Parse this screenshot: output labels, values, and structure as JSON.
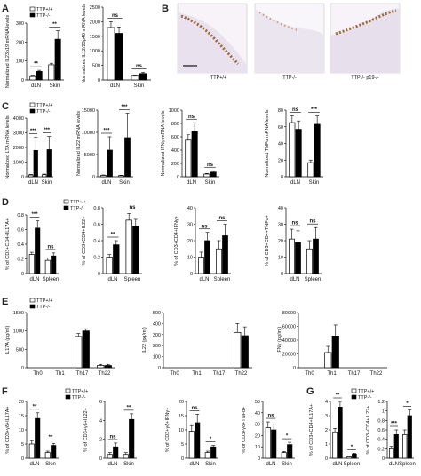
{
  "panel_labels": [
    "A",
    "B",
    "C",
    "D",
    "E",
    "F",
    "G"
  ],
  "legend": {
    "wt": "TTP+/+",
    "ko": "TTP-/-"
  },
  "micrographs": {
    "labels": [
      "TTP+/+",
      "TTP-/-",
      "TTP-/- p19-/-"
    ],
    "colors": {
      "tissue": "#e9e1ee",
      "stain": "#9b6a3e",
      "edge": "#c9b6cf"
    }
  },
  "colors": {
    "wt_fill": "#ffffff",
    "ko_fill": "#000000",
    "axis": "#000000"
  },
  "chart_data": [
    {
      "type": "bar",
      "panel": "A",
      "categories": [
        "dLN",
        "Skin"
      ],
      "series": [
        {
          "name": "TTP+/+",
          "values": [
            18,
            80
          ],
          "errors": [
            3,
            8
          ]
        },
        {
          "name": "TTP-/-",
          "values": [
            45,
            215
          ],
          "errors": [
            6,
            45
          ]
        }
      ],
      "ylabel": "Normalized IL23p19 mRNA levels",
      "ylim": [
        0,
        300
      ],
      "yticks": [
        0,
        100,
        200,
        300
      ],
      "significance": [
        "**",
        "**"
      ]
    },
    {
      "type": "bar",
      "panel": "A",
      "categories": [
        "dLN",
        "Skin"
      ],
      "series": [
        {
          "name": "TTP+/+",
          "values": [
            1800,
            130
          ],
          "errors": [
            200,
            25
          ]
        },
        {
          "name": "TTP-/-",
          "values": [
            1600,
            220
          ],
          "errors": [
            220,
            40
          ]
        }
      ],
      "ylabel": "Normalized IL12/23p40 mRNA levels",
      "ylim": [
        0,
        2500
      ],
      "yticks": [
        0,
        500,
        1000,
        1500,
        2000,
        2500
      ],
      "significance": [
        "ns",
        "ns"
      ]
    },
    {
      "type": "bar",
      "panel": "C",
      "categories": [
        "dLN",
        "Skin"
      ],
      "series": [
        {
          "name": "TTP+/+",
          "values": [
            120,
            140
          ],
          "errors": [
            40,
            40
          ]
        },
        {
          "name": "TTP-/-",
          "values": [
            1800,
            1850
          ],
          "errors": [
            900,
            900
          ]
        }
      ],
      "ylabel": "Normalized LTA mRNA levels",
      "ylim": [
        0,
        4000
      ],
      "yticks": [
        0,
        1000,
        2000,
        3000,
        4000
      ],
      "significance": [
        "***",
        "***"
      ]
    },
    {
      "type": "bar",
      "panel": "C",
      "categories": [
        "dLN",
        "Skin"
      ],
      "series": [
        {
          "name": "TTP+/+",
          "values": [
            300,
            250
          ],
          "errors": [
            100,
            80
          ]
        },
        {
          "name": "TTP-/-",
          "values": [
            6000,
            8800
          ],
          "errors": [
            3000,
            5500
          ]
        }
      ],
      "ylabel": "Normalized IL22 mRNA levels",
      "ylim": [
        0,
        15000
      ],
      "yticks": [
        0,
        5000,
        10000,
        15000
      ],
      "significance": [
        "***",
        "***"
      ]
    },
    {
      "type": "bar",
      "panel": "C",
      "categories": [
        "dLN",
        "Skin"
      ],
      "series": [
        {
          "name": "TTP+/+",
          "values": [
            550,
            40
          ],
          "errors": [
            80,
            10
          ]
        },
        {
          "name": "TTP-/-",
          "values": [
            680,
            70
          ],
          "errors": [
            130,
            20
          ]
        }
      ],
      "ylabel": "Normalized IFNγ mRNA levels",
      "ylim": [
        0,
        1000
      ],
      "yticks": [
        0,
        200,
        400,
        600,
        800,
        1000
      ],
      "significance": [
        "ns",
        "ns"
      ]
    },
    {
      "type": "bar",
      "panel": "C",
      "categories": [
        "dLN",
        "Skin"
      ],
      "series": [
        {
          "name": "TTP+/+",
          "values": [
            65,
            17
          ],
          "errors": [
            8,
            3
          ]
        },
        {
          "name": "TTP-/-",
          "values": [
            57,
            63
          ],
          "errors": [
            10,
            10
          ]
        }
      ],
      "ylabel": "Normalized TNFα mRNA levels",
      "ylim": [
        0,
        80
      ],
      "yticks": [
        0,
        20,
        40,
        60,
        80
      ],
      "significance": [
        "ns",
        "***"
      ]
    },
    {
      "type": "bar",
      "panel": "D",
      "categories": [
        "dLN",
        "Spleen"
      ],
      "series": [
        {
          "name": "TTP+/+",
          "values": [
            0.26,
            0.18
          ],
          "errors": [
            0.03,
            0.03
          ]
        },
        {
          "name": "TTP-/-",
          "values": [
            0.62,
            0.24
          ],
          "errors": [
            0.1,
            0.04
          ]
        }
      ],
      "ylabel": "% of CD3+CD4+IL17A+",
      "ylim": [
        0,
        0.8
      ],
      "yticks": [
        0,
        0.2,
        0.4,
        0.6,
        0.8
      ],
      "significance": [
        "***",
        "ns"
      ]
    },
    {
      "type": "bar",
      "panel": "D",
      "categories": [
        "dLN",
        "Spleen"
      ],
      "series": [
        {
          "name": "TTP+/+",
          "values": [
            0.2,
            0.65
          ],
          "errors": [
            0.03,
            0.08
          ]
        },
        {
          "name": "TTP-/-",
          "values": [
            0.35,
            0.58
          ],
          "errors": [
            0.05,
            0.08
          ]
        }
      ],
      "ylabel": "% of CD3+CD4+IL22+",
      "ylim": [
        0,
        0.8
      ],
      "yticks": [
        0,
        0.2,
        0.4,
        0.6,
        0.8
      ],
      "significance": [
        "**",
        "ns"
      ]
    },
    {
      "type": "bar",
      "panel": "D",
      "categories": [
        "dLN",
        "Spleen"
      ],
      "series": [
        {
          "name": "TTP+/+",
          "values": [
            10,
            15
          ],
          "errors": [
            3,
            5
          ]
        },
        {
          "name": "TTP-/-",
          "values": [
            20,
            23
          ],
          "errors": [
            5,
            7
          ]
        }
      ],
      "ylabel": "% of CD3+CD4+IFNγ+",
      "ylim": [
        0,
        40
      ],
      "yticks": [
        0,
        10,
        20,
        30,
        40
      ],
      "significance": [
        "ns",
        "ns"
      ]
    },
    {
      "type": "bar",
      "panel": "D",
      "categories": [
        "dLN",
        "Spleen"
      ],
      "series": [
        {
          "name": "TTP+/+",
          "values": [
            21,
            15
          ],
          "errors": [
            6,
            5
          ]
        },
        {
          "name": "TTP-/-",
          "values": [
            19,
            21
          ],
          "errors": [
            7,
            7
          ]
        }
      ],
      "ylabel": "% of CD3+CD4+TNFα+",
      "ylim": [
        0,
        40
      ],
      "yticks": [
        0,
        10,
        20,
        30,
        40
      ],
      "significance": [
        "ns",
        "ns"
      ]
    },
    {
      "type": "bar",
      "panel": "E",
      "categories": [
        "Th0",
        "Th1",
        "Th17",
        "Th22"
      ],
      "series": [
        {
          "name": "TTP+/+",
          "values": [
            0,
            0,
            850,
            60
          ],
          "errors": [
            0,
            0,
            80,
            30
          ]
        },
        {
          "name": "TTP-/-",
          "values": [
            0,
            0,
            1000,
            60
          ],
          "errors": [
            0,
            0,
            60,
            30
          ]
        }
      ],
      "ylabel": "IL17A (pg/ml)",
      "ylim": [
        0,
        1500
      ],
      "yticks": [
        0,
        500,
        1000,
        1500
      ],
      "significance": []
    },
    {
      "type": "bar",
      "panel": "E",
      "categories": [
        "Th0",
        "Th1",
        "Th17",
        "Th22"
      ],
      "series": [
        {
          "name": "TTP+/+",
          "values": [
            0,
            0,
            0,
            320
          ],
          "errors": [
            0,
            0,
            0,
            80
          ]
        },
        {
          "name": "TTP-/-",
          "values": [
            0,
            0,
            0,
            290
          ],
          "errors": [
            0,
            0,
            0,
            80
          ]
        }
      ],
      "ylabel": "IL22 (pg/ml)",
      "ylim": [
        0,
        500
      ],
      "yticks": [
        0,
        100,
        200,
        300,
        400,
        500
      ],
      "significance": []
    },
    {
      "type": "bar",
      "panel": "E",
      "categories": [
        "Th0",
        "Th1",
        "Th17",
        "Th22"
      ],
      "series": [
        {
          "name": "TTP+/+",
          "values": [
            0,
            22000,
            0,
            0
          ],
          "errors": [
            0,
            9000,
            0,
            0
          ]
        },
        {
          "name": "TTP-/-",
          "values": [
            0,
            46000,
            0,
            0
          ],
          "errors": [
            0,
            16000,
            0,
            0
          ]
        }
      ],
      "ylabel": "IFNγ (pg/ml)",
      "ylim": [
        0,
        80000
      ],
      "yticks": [
        0,
        20000,
        40000,
        60000,
        80000
      ],
      "significance": []
    },
    {
      "type": "bar",
      "panel": "F",
      "categories": [
        "dLN",
        "Skin"
      ],
      "series": [
        {
          "name": "TTP+/+",
          "values": [
            5,
            2
          ],
          "errors": [
            1.2,
            0.5
          ]
        },
        {
          "name": "TTP-/-",
          "values": [
            14,
            4.5
          ],
          "errors": [
            2,
            0.7
          ]
        }
      ],
      "ylabel": "% of CD3+γδ+IL17A+",
      "ylim": [
        0,
        20
      ],
      "yticks": [
        0,
        5,
        10,
        15,
        20
      ],
      "significance": [
        "**",
        "**"
      ]
    },
    {
      "type": "bar",
      "panel": "F",
      "categories": [
        "dLN",
        "Skin"
      ],
      "series": [
        {
          "name": "TTP+/+",
          "values": [
            0.4,
            0.4
          ],
          "errors": [
            0.2,
            0.2
          ]
        },
        {
          "name": "TTP-/-",
          "values": [
            1.2,
            4.1
          ],
          "errors": [
            0.4,
            0.6
          ]
        }
      ],
      "ylabel": "% of CD3+γδ+IL22+",
      "ylim": [
        0,
        6
      ],
      "yticks": [
        0,
        2,
        4,
        6
      ],
      "significance": [
        "ns",
        "**"
      ]
    },
    {
      "type": "bar",
      "panel": "F",
      "categories": [
        "dLN",
        "Skin"
      ],
      "series": [
        {
          "name": "TTP+/+",
          "values": [
            9.5,
            2
          ],
          "errors": [
            2,
            0.5
          ]
        },
        {
          "name": "TTP-/-",
          "values": [
            12.5,
            4
          ],
          "errors": [
            3,
            0.5
          ]
        }
      ],
      "ylabel": "% of CD3+γδ+IFNγ+",
      "ylim": [
        0,
        20
      ],
      "yticks": [
        0,
        5,
        10,
        15,
        20
      ],
      "significance": [
        "ns",
        "*"
      ]
    },
    {
      "type": "bar",
      "panel": "F",
      "categories": [
        "dLN",
        "Skin"
      ],
      "series": [
        {
          "name": "TTP+/+",
          "values": [
            27,
            5
          ],
          "errors": [
            5,
            1
          ]
        },
        {
          "name": "TTP-/-",
          "values": [
            25,
            12
          ],
          "errors": [
            5,
            2
          ]
        }
      ],
      "ylabel": "% of CD3+γδ+TNFα+",
      "ylim": [
        0,
        50
      ],
      "yticks": [
        0,
        10,
        20,
        30,
        40,
        50
      ],
      "significance": [
        "ns",
        "*"
      ]
    },
    {
      "type": "bar",
      "panel": "G",
      "categories": [
        "dLN",
        "Spleen"
      ],
      "series": [
        {
          "name": "TTP+/+",
          "values": [
            1.8,
            0.1
          ],
          "errors": [
            0.3,
            0.03
          ]
        },
        {
          "name": "TTP-/-",
          "values": [
            3.6,
            0.3
          ],
          "errors": [
            0.4,
            0.05
          ]
        }
      ],
      "ylabel": "% of CD3+CD4+IL17A+",
      "ylim": [
        0,
        4
      ],
      "yticks": [
        0,
        1,
        2,
        3,
        4
      ],
      "significance": [
        "**",
        "*"
      ]
    },
    {
      "type": "bar",
      "panel": "G",
      "categories": [
        "dLN",
        "Spleen"
      ],
      "series": [
        {
          "name": "TTP+/+",
          "values": [
            0.2,
            0.5
          ],
          "errors": [
            0.05,
            0.1
          ]
        },
        {
          "name": "TTP-/-",
          "values": [
            0.5,
            0.9
          ],
          "errors": [
            0.1,
            0.12
          ]
        }
      ],
      "ylabel": "% of CD3+CD4+IL22+",
      "ylim": [
        0,
        1.2
      ],
      "yticks": [
        0,
        0.2,
        0.4,
        0.6,
        0.8,
        1.0,
        1.2
      ],
      "significance": [
        "***",
        "*"
      ]
    }
  ]
}
